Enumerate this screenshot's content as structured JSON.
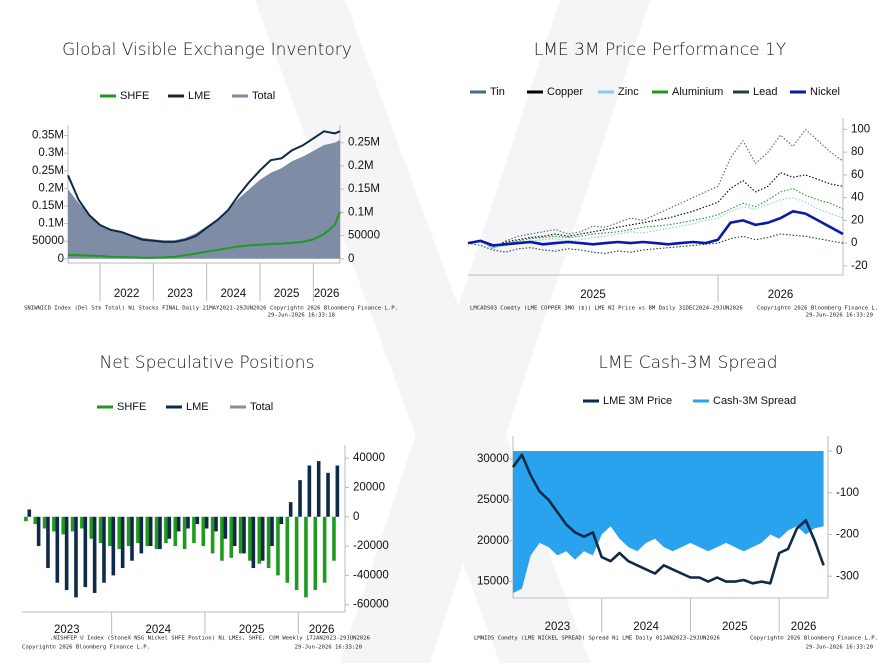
{
  "chart_data": [
    {
      "type": "line",
      "title": "Global Visible Exchange Inventory",
      "x": [
        2021.4,
        2021.6,
        2021.8,
        2022.0,
        2022.2,
        2022.4,
        2022.6,
        2022.8,
        2023.0,
        2023.2,
        2023.4,
        2023.6,
        2023.8,
        2024.0,
        2024.2,
        2024.4,
        2024.6,
        2024.8,
        2025.0,
        2025.2,
        2025.4,
        2025.6,
        2025.8,
        2026.0,
        2026.2,
        2026.4,
        2026.5
      ],
      "series": [
        {
          "name": "SHFE",
          "color": "#1f9a1f",
          "style": "solid",
          "values": [
            11000,
            10000,
            9000,
            8000,
            6000,
            5000,
            4000,
            3000,
            3000,
            4000,
            6000,
            10000,
            15000,
            20000,
            25000,
            30000,
            35000,
            38000,
            40000,
            42000,
            43000,
            45000,
            48000,
            55000,
            70000,
            96000,
            133000
          ]
        },
        {
          "name": "LME",
          "color": "#0f2a47",
          "style": "solid",
          "values": [
            237000,
            167000,
            124000,
            96000,
            82000,
            76000,
            65000,
            54000,
            51000,
            48000,
            48000,
            54000,
            65000,
            88000,
            110000,
            138000,
            181000,
            218000,
            251000,
            280000,
            285000,
            308000,
            322000,
            342000,
            362000,
            356000,
            362000
          ]
        },
        {
          "name": "Total",
          "color": "#7f8ca6",
          "style": "area",
          "axis": "y2",
          "values": [
            150000,
            120000,
            95000,
            75000,
            62000,
            58000,
            52000,
            45000,
            42000,
            40000,
            40000,
            45000,
            55000,
            70000,
            85000,
            105000,
            130000,
            150000,
            170000,
            185000,
            195000,
            210000,
            220000,
            232000,
            245000,
            250000,
            256000
          ]
        }
      ],
      "xlim": [
        2021.4,
        2026.5
      ],
      "xticks": [
        2022,
        2023,
        2024,
        2025,
        2026
      ],
      "ylim": [
        -12000,
        380000
      ],
      "yticks": [
        0,
        50000,
        {
          "value": 100000,
          "label": "0.1M"
        },
        {
          "value": 150000,
          "label": "0.15M"
        },
        {
          "value": 200000,
          "label": "0.2M"
        },
        {
          "value": 250000,
          "label": "0.25M"
        },
        {
          "value": 300000,
          "label": "0.3M"
        },
        {
          "value": 350000,
          "label": "0.35M"
        }
      ],
      "y2lim": [
        -9000,
        288000
      ],
      "y2ticks": [
        0,
        50000,
        {
          "value": 100000,
          "label": "0.1M"
        },
        {
          "value": 150000,
          "label": "0.15M"
        },
        {
          "value": 200000,
          "label": "0.2M"
        },
        {
          "value": 250000,
          "label": "0.25M"
        }
      ],
      "y_axis_side": "left",
      "footer": {
        "source": "SNIWNICD Index (Del Stk Total) Ni Stocks FINAL Daily 21MAY2021-29JUN2026",
        "copyright": "Copyright© 2026 Bloomberg Finance L.P.",
        "timestamp": "29-Jun-2026 16:33:18"
      }
    },
    {
      "type": "line",
      "title": "LME 3M Price Performance 1Y",
      "x": [
        2025,
        2025.05,
        2025.1,
        2025.15,
        2025.2,
        2025.25,
        2025.3,
        2025.35,
        2025.4,
        2025.45,
        2025.5,
        2025.55,
        2025.6,
        2025.65,
        2025.7,
        2025.75,
        2025.8,
        2025.85,
        2025.9,
        2025.95,
        2026,
        2026.05,
        2026.1,
        2026.15,
        2026.2,
        2026.25,
        2026.3,
        2026.35,
        2026.4,
        2026.45,
        2026.5
      ],
      "series": [
        {
          "name": "Tin",
          "color": "#4a6a8a",
          "style": "dotted",
          "values": [
            0,
            3,
            -5,
            2,
            6,
            8,
            10,
            12,
            8,
            10,
            15,
            14,
            18,
            22,
            20,
            25,
            30,
            35,
            40,
            45,
            50,
            75,
            90,
            70,
            80,
            95,
            85,
            100,
            90,
            80,
            72
          ]
        },
        {
          "name": "Copper",
          "color": "#000000",
          "style": "dotted",
          "values": [
            0,
            2,
            -3,
            1,
            3,
            5,
            6,
            8,
            6,
            8,
            10,
            12,
            14,
            16,
            18,
            20,
            22,
            25,
            28,
            32,
            36,
            48,
            55,
            45,
            50,
            62,
            58,
            60,
            56,
            52,
            50
          ]
        },
        {
          "name": "Zinc",
          "color": "#8ccbe8",
          "style": "dotted",
          "values": [
            0,
            1,
            -4,
            -2,
            0,
            2,
            3,
            4,
            2,
            3,
            5,
            6,
            8,
            10,
            9,
            11,
            13,
            15,
            17,
            20,
            22,
            28,
            32,
            30,
            34,
            38,
            40,
            36,
            30,
            26,
            22
          ]
        },
        {
          "name": "Aluminium",
          "color": "#1f9a1f",
          "style": "dotted",
          "values": [
            0,
            2,
            -2,
            0,
            2,
            4,
            5,
            6,
            5,
            6,
            8,
            9,
            10,
            12,
            14,
            15,
            16,
            18,
            20,
            22,
            25,
            30,
            35,
            32,
            38,
            45,
            48,
            42,
            38,
            35,
            30
          ]
        },
        {
          "name": "Lead",
          "color": "#1e4040",
          "style": "dotted",
          "values": [
            0,
            -2,
            -6,
            -8,
            -5,
            -4,
            -6,
            -7,
            -5,
            -6,
            -8,
            -9,
            -7,
            -8,
            -6,
            -5,
            -4,
            -3,
            -2,
            -1,
            0,
            4,
            6,
            3,
            5,
            8,
            7,
            6,
            4,
            2,
            0
          ]
        },
        {
          "name": "Nickel",
          "color": "#0a1aa8",
          "style": "thick",
          "values": [
            0,
            2,
            -2,
            -1,
            0,
            1,
            -1,
            0,
            1,
            0,
            -1,
            0,
            1,
            0,
            1,
            0,
            -1,
            0,
            1,
            0,
            3,
            18,
            20,
            16,
            18,
            22,
            28,
            26,
            20,
            14,
            8
          ]
        }
      ],
      "xlim": [
        2025.0,
        2026.5
      ],
      "xticks": [
        2025,
        2026
      ],
      "ylim": [
        -28,
        110
      ],
      "yticks": [
        -20,
        0,
        20,
        40,
        60,
        80,
        100
      ],
      "y_axis_side": "right",
      "footer": {
        "source": "LMCADS03 Comdty (LME COPPER 3MO ($)) LME NI Price vs BM Daily 31DEC2024-29JUN2026",
        "copyright": "Copyright© 2026 Bloomberg Finance L.P.",
        "timestamp": "29-Jun-2026 16:33:20"
      }
    },
    {
      "type": "bar",
      "title": "Net Speculative Positions",
      "x": [
        2023.1,
        2023.2,
        2023.3,
        2023.4,
        2023.5,
        2023.6,
        2023.7,
        2023.8,
        2023.9,
        2024.0,
        2024.1,
        2024.2,
        2024.3,
        2024.4,
        2024.5,
        2024.6,
        2024.7,
        2024.8,
        2024.9,
        2025.0,
        2025.1,
        2025.2,
        2025.3,
        2025.4,
        2025.5,
        2025.6,
        2025.7,
        2025.8,
        2025.9,
        2026.0,
        2026.1,
        2026.2,
        2026.3,
        2026.4
      ],
      "series": [
        {
          "name": "SHFE",
          "color": "#1f9a1f",
          "values": [
            -3000,
            -5000,
            -8000,
            -10000,
            -12000,
            -10000,
            -8000,
            -15000,
            -18000,
            -20000,
            -22000,
            -20000,
            -18000,
            -20000,
            -22000,
            -18000,
            -20000,
            -22000,
            -18000,
            -20000,
            -25000,
            -30000,
            -28000,
            -25000,
            -30000,
            -32000,
            -35000,
            -40000,
            -45000,
            -50000,
            -55000,
            -50000,
            -45000,
            -30000
          ]
        },
        {
          "name": "LME",
          "color": "#0f2a47",
          "values": [
            5000,
            -20000,
            -35000,
            -45000,
            -50000,
            -55000,
            -48000,
            -52000,
            -45000,
            -40000,
            -35000,
            -30000,
            -25000,
            -20000,
            -22000,
            -15000,
            -10000,
            -8000,
            -5000,
            -8000,
            -10000,
            -15000,
            -20000,
            -25000,
            -35000,
            -30000,
            -20000,
            -5000,
            10000,
            25000,
            35000,
            38000,
            30000,
            35000
          ]
        },
        {
          "name": "Total",
          "color": "#8c8c8c",
          "values": [
            null,
            null,
            null,
            null,
            null,
            null,
            null,
            null,
            null,
            null,
            null,
            null,
            null,
            null,
            null,
            null,
            null,
            null,
            null,
            null,
            null,
            null,
            null,
            null,
            null,
            null,
            null,
            null,
            null,
            null,
            null,
            null,
            null,
            null
          ]
        }
      ],
      "xlim": [
        2023.04,
        2026.5
      ],
      "xticks": [
        2023,
        2024,
        2025,
        2026
      ],
      "ylim": [
        -65000,
        49000
      ],
      "yticks": [
        -60000,
        -40000,
        -20000,
        0,
        20000,
        40000
      ],
      "y_axis_side": "right",
      "footer": {
        "source": ".NISHFEP U Index (StoneX NSG Nickel SHFE Postion) Ni LMEs, SHFE, COM Weekly 17JAN2023-29JUN2026",
        "copyright": "Copyright© 2026 Bloomberg Finance L.P.",
        "timestamp": "29-Jun-2026 16:33:20"
      }
    },
    {
      "type": "line",
      "title": "LME Cash-3M Spread",
      "x": [
        2023.0,
        2023.1,
        2023.2,
        2023.3,
        2023.4,
        2023.5,
        2023.6,
        2023.7,
        2023.8,
        2023.9,
        2024.0,
        2024.1,
        2024.2,
        2024.3,
        2024.4,
        2024.5,
        2024.6,
        2024.7,
        2024.8,
        2024.9,
        2025.0,
        2025.1,
        2025.2,
        2025.3,
        2025.4,
        2025.5,
        2025.6,
        2025.7,
        2025.8,
        2025.9,
        2026.0,
        2026.1,
        2026.2,
        2026.3,
        2026.4,
        2026.5
      ],
      "series": [
        {
          "name": "LME 3M Price",
          "color": "#0f2a47",
          "style": "thick",
          "values": [
            29000,
            30500,
            28000,
            26000,
            25000,
            23500,
            22000,
            21000,
            20500,
            21000,
            18000,
            17500,
            18500,
            17500,
            17000,
            16500,
            16000,
            17000,
            16500,
            16000,
            15500,
            15500,
            15000,
            15500,
            15000,
            15000,
            15200,
            14800,
            15000,
            14800,
            18500,
            19000,
            21500,
            22500,
            20000,
            17000
          ]
        },
        {
          "name": "Cash-3M Spread",
          "color": "#2aa3ee",
          "style": "area",
          "axis": "y2",
          "values": [
            -340,
            -330,
            -250,
            -220,
            -230,
            -250,
            -240,
            -260,
            -240,
            -250,
            -200,
            -180,
            -210,
            -230,
            -240,
            -220,
            -210,
            -230,
            -240,
            -230,
            -220,
            -230,
            -240,
            -230,
            -220,
            -230,
            -240,
            -230,
            -220,
            -200,
            -210,
            -190,
            -180,
            -200,
            -185,
            -180
          ]
        }
      ],
      "xlim": [
        2023.0,
        2026.55
      ],
      "xticks": [
        2023,
        2024,
        2025,
        2026
      ],
      "ylim": [
        13000,
        32800
      ],
      "yticks": [
        15000,
        20000,
        25000,
        30000
      ],
      "y2lim": [
        -352,
        36
      ],
      "y2ticks": [
        -300,
        -200,
        -100,
        0
      ],
      "y_axis_side": "left",
      "footer": {
        "source": "LMNIDS Comdty (LME NICKEL SPREAD) Spread Ni LME Daily 01JAN2023-29JUN2026",
        "copyright": "Copyright© 2026 Bloomberg Finance L.P.",
        "timestamp": "29-Jun-2026 16:33:20"
      }
    }
  ]
}
